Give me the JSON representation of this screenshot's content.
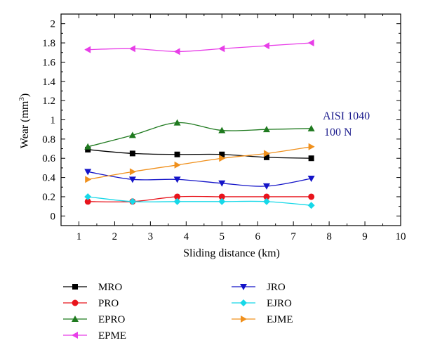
{
  "chart_data": {
    "type": "line",
    "xlabel": "Sliding distance (km)",
    "ylabel": {
      "main": "Wear (mm",
      "sup": "3",
      "close": ")"
    },
    "xlim": [
      0.5,
      10
    ],
    "ylim": [
      -0.1,
      2.1
    ],
    "x_ticks": [
      1,
      2,
      3,
      4,
      5,
      6,
      7,
      8,
      9,
      10
    ],
    "y_ticks": [
      0,
      0.2,
      0.4,
      0.6,
      0.8,
      1,
      1.2,
      1.4,
      1.6,
      1.8,
      2
    ],
    "y_tick_labels": [
      "0",
      "0.2",
      "0.4",
      "0.6",
      "0.8",
      "1",
      "1.2",
      "1.4",
      "1.6",
      "1.8",
      "2"
    ],
    "grid": false,
    "legend_position": "bottom",
    "annotations": [
      "AISI 1040",
      "100 N"
    ],
    "x": [
      1.25,
      2.5,
      3.75,
      5,
      6.25,
      7.5
    ],
    "series": [
      {
        "name": "MRO",
        "color": "#000000",
        "marker": "square",
        "values": [
          0.69,
          0.65,
          0.64,
          0.64,
          0.61,
          0.6
        ]
      },
      {
        "name": "PRO",
        "color": "#e8141c",
        "marker": "circle",
        "values": [
          0.15,
          0.15,
          0.2,
          0.2,
          0.2,
          0.2
        ]
      },
      {
        "name": "EPRO",
        "color": "#1f7a1f",
        "marker": "triangle-up",
        "values": [
          0.72,
          0.84,
          0.97,
          0.89,
          0.9,
          0.91
        ]
      },
      {
        "name": "EPME",
        "color": "#e83ee8",
        "marker": "triangle-left",
        "values": [
          1.73,
          1.74,
          1.71,
          1.74,
          1.77,
          1.8
        ]
      },
      {
        "name": "JRO",
        "color": "#1414c8",
        "marker": "triangle-down",
        "values": [
          0.46,
          0.38,
          0.38,
          0.34,
          0.31,
          0.39
        ]
      },
      {
        "name": "EJRO",
        "color": "#16d8e8",
        "marker": "diamond",
        "values": [
          0.2,
          0.15,
          0.15,
          0.15,
          0.15,
          0.11
        ]
      },
      {
        "name": "EJME",
        "color": "#f0901c",
        "marker": "triangle-right",
        "values": [
          0.38,
          0.46,
          0.53,
          0.6,
          0.65,
          0.72
        ]
      }
    ]
  }
}
